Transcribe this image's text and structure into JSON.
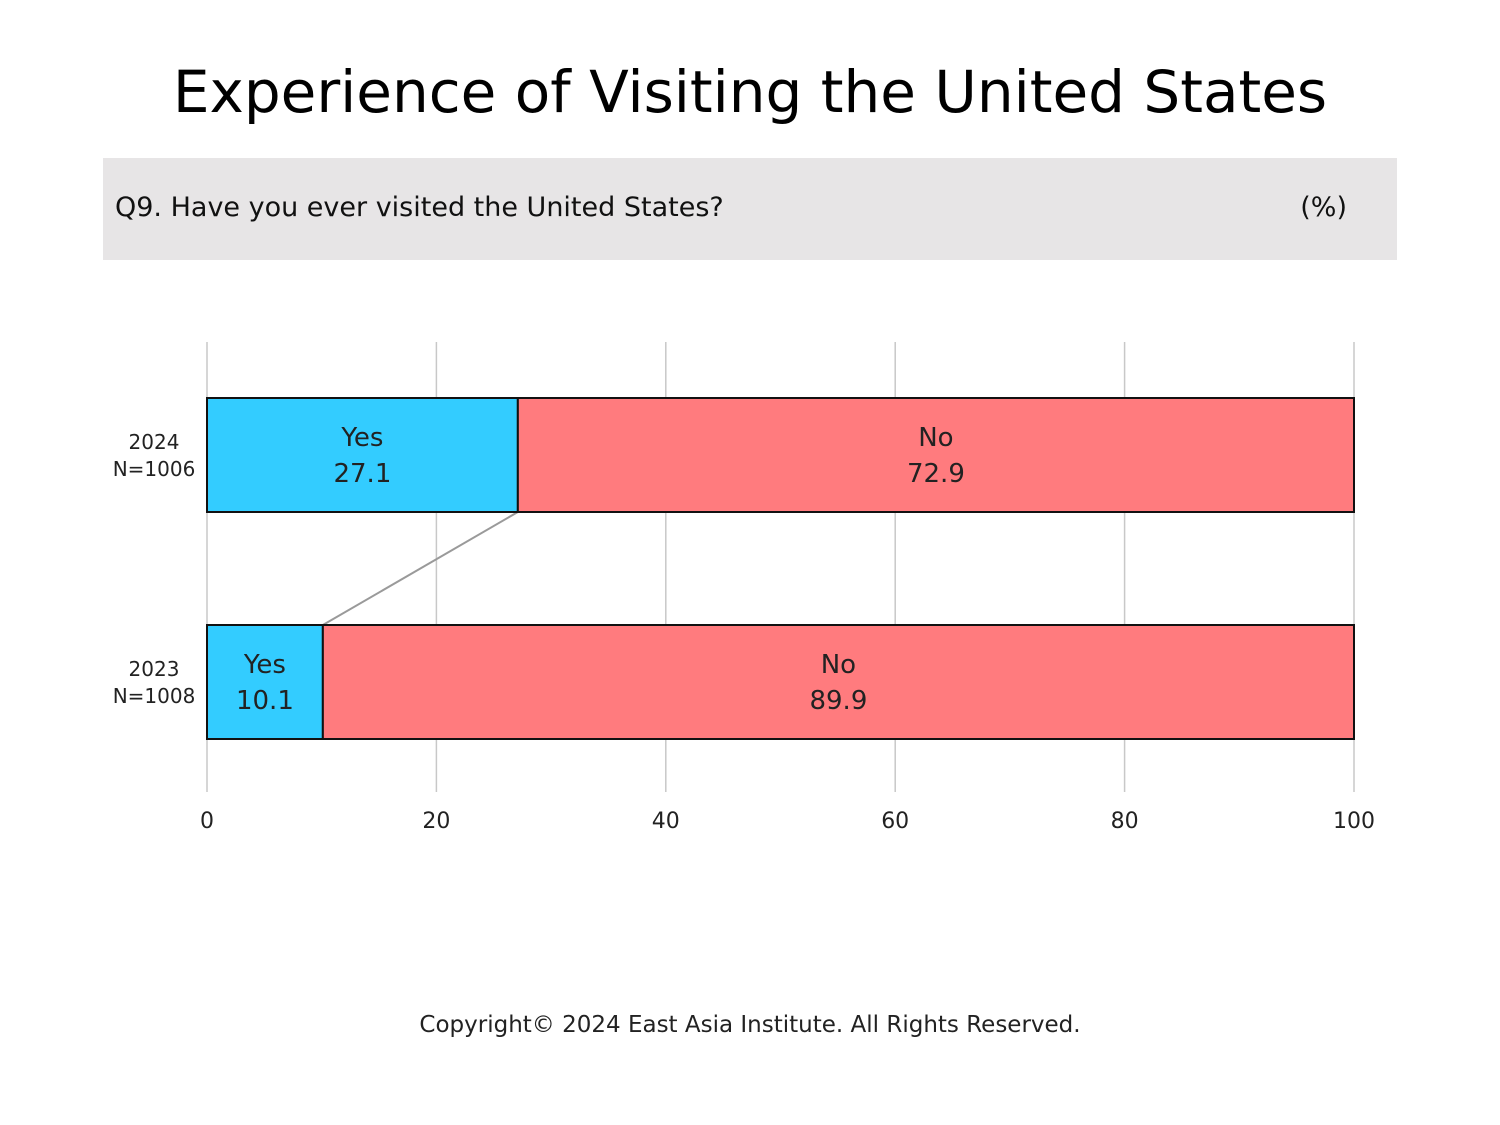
{
  "title": "Experience of Visiting the United States",
  "question": "Q9. Have you ever visited the United States?",
  "unit": "(%)",
  "copyright": "Copyright© 2024 East Asia Institute. All Rights Reserved.",
  "colors": {
    "yes": "#33ccff",
    "no": "#ff7b7e",
    "grid": "#c8c8c8",
    "connector": "#9a9a9a"
  },
  "chart_data": {
    "type": "bar",
    "orientation": "horizontal",
    "stacked": true,
    "categories": [
      {
        "year": "2024",
        "n": "N=1006"
      },
      {
        "year": "2023",
        "n": "N=1008"
      }
    ],
    "series": [
      {
        "name": "Yes",
        "values": [
          27.1,
          10.1
        ]
      },
      {
        "name": "No",
        "values": [
          72.9,
          89.9
        ]
      }
    ],
    "xlim": [
      0,
      100
    ],
    "xticks": [
      "0",
      "20",
      "40",
      "60",
      "80",
      "100"
    ],
    "grid": true,
    "connector_between_yes_bars": true
  }
}
